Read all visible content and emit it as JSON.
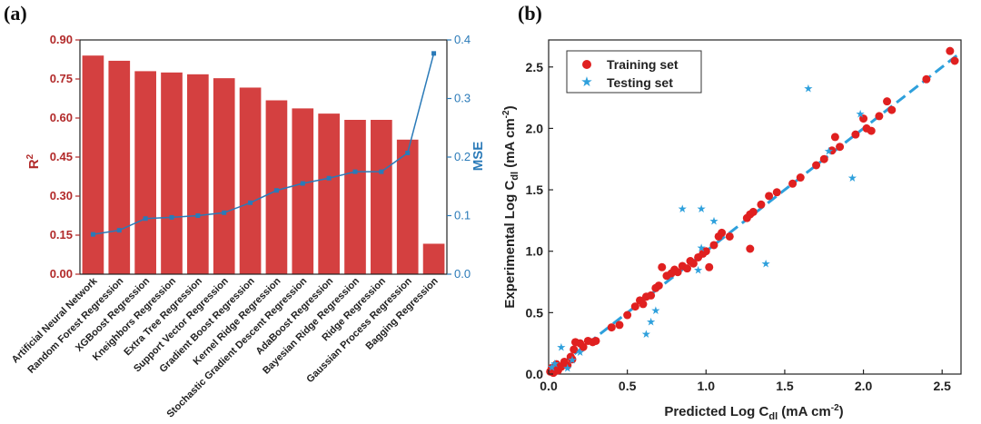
{
  "panel_labels": {
    "a": "(a)",
    "b": "(b)"
  },
  "chart_data": [
    {
      "type": "bar",
      "panel": "a",
      "categories": [
        "Artificial Neural Network",
        "Random Forest Regression",
        "XGBoost Regression",
        "Kneighbors Regression",
        "Extra Tree Regression",
        "Support Vector Regression",
        "Gradient Boost Regression",
        "Kernel Ridge Regression",
        "Stochastic Gradient Descent Regression",
        "AdaBoost Regression",
        "Bayesian Ridge Regression",
        "Ridge Regression",
        "Gaussian Process Regression",
        "Bagging Regression"
      ],
      "series": [
        {
          "name": "R2",
          "axis": "left",
          "type": "bar",
          "color": "#d44040",
          "values": [
            0.84,
            0.82,
            0.78,
            0.775,
            0.768,
            0.753,
            0.717,
            0.668,
            0.637,
            0.617,
            0.593,
            0.593,
            0.517,
            0.117
          ]
        },
        {
          "name": "MSE",
          "axis": "right",
          "type": "line",
          "color": "#2a7ab8",
          "values": [
            0.068,
            0.075,
            0.095,
            0.097,
            0.1,
            0.105,
            0.122,
            0.143,
            0.155,
            0.164,
            0.175,
            0.175,
            0.207,
            0.377
          ]
        }
      ],
      "ylabel_left": "R",
      "ylabel_left_sup": "2",
      "ylabel_right": "MSE",
      "ylim_left": [
        0,
        0.9
      ],
      "ylim_right": [
        0,
        0.4
      ],
      "yticks_left": [
        "0.00",
        "0.15",
        "0.30",
        "0.45",
        "0.60",
        "0.75",
        "0.90"
      ],
      "yticks_right": [
        "0.0",
        "0.1",
        "0.2",
        "0.3",
        "0.4"
      ]
    },
    {
      "type": "scatter",
      "panel": "b",
      "xlabel": "Predicted Log C",
      "xlabel_sub": "dl",
      "xlabel_unit": " (mA cm",
      "xlabel_sup": "-2",
      "xlabel_end": ")",
      "ylabel": "Experimental Log C",
      "ylabel_sub": "dl",
      "ylabel_unit": " (mA cm",
      "ylabel_sup": "-2",
      "ylabel_end": ")",
      "xlim": [
        0,
        2.62
      ],
      "ylim": [
        0,
        2.72
      ],
      "xticks": [
        "0.0",
        "0.5",
        "1.0",
        "1.5",
        "2.0",
        "2.5"
      ],
      "yticks": [
        "0.0",
        "0.5",
        "1.0",
        "1.5",
        "2.0",
        "2.5"
      ],
      "legend_position": "top-left",
      "fit_line": {
        "x": [
          0,
          2.62
        ],
        "y": [
          0,
          2.62
        ],
        "color": "#2ea0dc"
      },
      "series": [
        {
          "name": "Training set",
          "marker": "circle",
          "color": "#e02020",
          "points": [
            [
              0.01,
              0.02
            ],
            [
              0.02,
              0.05
            ],
            [
              0.03,
              0.01
            ],
            [
              0.05,
              0.08
            ],
            [
              0.06,
              0.03
            ],
            [
              0.08,
              0.06
            ],
            [
              0.1,
              0.1
            ],
            [
              0.12,
              0.07
            ],
            [
              0.14,
              0.14
            ],
            [
              0.15,
              0.12
            ],
            [
              0.16,
              0.2
            ],
            [
              0.17,
              0.26
            ],
            [
              0.2,
              0.25
            ],
            [
              0.22,
              0.22
            ],
            [
              0.25,
              0.27
            ],
            [
              0.28,
              0.26
            ],
            [
              0.3,
              0.27
            ],
            [
              0.4,
              0.38
            ],
            [
              0.45,
              0.4
            ],
            [
              0.5,
              0.48
            ],
            [
              0.55,
              0.55
            ],
            [
              0.58,
              0.6
            ],
            [
              0.6,
              0.57
            ],
            [
              0.62,
              0.63
            ],
            [
              0.65,
              0.64
            ],
            [
              0.68,
              0.7
            ],
            [
              0.7,
              0.72
            ],
            [
              0.72,
              0.87
            ],
            [
              0.75,
              0.8
            ],
            [
              0.78,
              0.82
            ],
            [
              0.8,
              0.85
            ],
            [
              0.82,
              0.83
            ],
            [
              0.85,
              0.88
            ],
            [
              0.88,
              0.86
            ],
            [
              0.9,
              0.92
            ],
            [
              0.92,
              0.9
            ],
            [
              0.95,
              0.95
            ],
            [
              0.98,
              0.98
            ],
            [
              1.0,
              1.0
            ],
            [
              1.02,
              0.87
            ],
            [
              1.05,
              1.05
            ],
            [
              1.08,
              1.12
            ],
            [
              1.1,
              1.15
            ],
            [
              1.15,
              1.12
            ],
            [
              1.26,
              1.27
            ],
            [
              1.28,
              1.3
            ],
            [
              1.3,
              1.32
            ],
            [
              1.28,
              1.02
            ],
            [
              1.35,
              1.38
            ],
            [
              1.4,
              1.45
            ],
            [
              1.45,
              1.48
            ],
            [
              1.55,
              1.55
            ],
            [
              1.6,
              1.6
            ],
            [
              1.7,
              1.7
            ],
            [
              1.75,
              1.75
            ],
            [
              1.8,
              1.82
            ],
            [
              1.82,
              1.93
            ],
            [
              1.85,
              1.85
            ],
            [
              1.95,
              1.95
            ],
            [
              2.0,
              2.08
            ],
            [
              2.02,
              2.0
            ],
            [
              2.05,
              1.98
            ],
            [
              2.1,
              2.1
            ],
            [
              2.15,
              2.22
            ],
            [
              2.18,
              2.15
            ],
            [
              2.4,
              2.4
            ],
            [
              2.55,
              2.63
            ],
            [
              2.58,
              2.55
            ]
          ]
        },
        {
          "name": "Testing set",
          "marker": "star",
          "color": "#2ea0dc",
          "points": [
            [
              0.02,
              0.06
            ],
            [
              0.04,
              0.09
            ],
            [
              0.08,
              0.22
            ],
            [
              0.12,
              0.05
            ],
            [
              0.15,
              0.12
            ],
            [
              0.2,
              0.18
            ],
            [
              0.62,
              0.33
            ],
            [
              0.65,
              0.43
            ],
            [
              0.68,
              0.52
            ],
            [
              0.85,
              1.35
            ],
            [
              0.95,
              0.85
            ],
            [
              0.97,
              1.03
            ],
            [
              0.97,
              1.35
            ],
            [
              1.05,
              1.25
            ],
            [
              1.38,
              0.9
            ],
            [
              1.65,
              2.33
            ],
            [
              1.78,
              1.82
            ],
            [
              1.93,
              1.6
            ],
            [
              1.98,
              2.12
            ]
          ]
        }
      ]
    }
  ]
}
